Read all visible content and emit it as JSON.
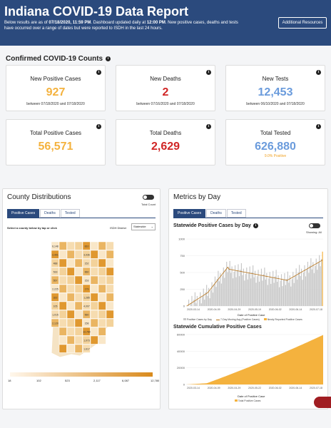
{
  "header": {
    "title": "Indiana COVID-19 Data Report",
    "sub_pre": "Below results are as of ",
    "sub_date": "07/18/2020, 11:59 PM",
    "sub_mid": ". Dashboard updated daily at ",
    "sub_time": "12:00 PM",
    "sub_post": ". New positive cases, deaths and tests have occurred over a range of dates but were reported to ISDH in the last 24 hours.",
    "resources_label": "Additional Resources"
  },
  "confirmed": {
    "title": "Confirmed COVID-19 Counts",
    "cards": [
      {
        "title": "New Positive Cases",
        "value": "927",
        "date": "between 07/18/2020 and 07/18/2020"
      },
      {
        "title": "New Deaths",
        "value": "2",
        "date": "between 07/16/2020 and 07/18/2020"
      },
      {
        "title": "New Tests",
        "value": "12,453",
        "date": "between 06/10/2020 and 07/18/2020"
      },
      {
        "title": "Total Positive Cases",
        "value": "56,571"
      },
      {
        "title": "Total Deaths",
        "value": "2,629"
      },
      {
        "title": "Total Tested",
        "value": "626,880",
        "pos": "9.0% Positive"
      }
    ]
  },
  "county": {
    "title": "County Distributions",
    "toggle_label": "Total Count",
    "tabs": [
      "Positive Cases",
      "Deaths",
      "Tested"
    ],
    "instruction": "Select a county below by tap or click",
    "district_label": "ISDH District",
    "district_value": "Statewide",
    "legend_ticks": [
      "18",
      "102",
      "523",
      "2,117",
      "6,087",
      "12,780"
    ],
    "map_labels": [
      "6,148",
      "810",
      "2,401",
      "3,936",
      "488",
      "152",
      "533",
      "660",
      "557",
      "153",
      "2,225",
      "179",
      "322",
      "1,285",
      "105",
      "4,007",
      "1,015",
      "560",
      "2,120",
      "158",
      "12,780",
      "1,073",
      "1,617",
      "1,107",
      "475"
    ]
  },
  "metrics": {
    "title": "Metrics by Day",
    "tabs": [
      "Positive Cases",
      "Deaths",
      "Tested"
    ],
    "showing_label": "Showing: All",
    "chart1": {
      "title": "Statewide Positive Cases by Day",
      "xlabel": "Date of Positive Case",
      "yticks": [
        "1000",
        "750",
        "500",
        "250",
        "0"
      ],
      "xticks": [
        "2020-03-14",
        "2020-04-09",
        "2020-04-29",
        "2020-05-19",
        "2020-06-02",
        "2020-06-14",
        "2020-07-18"
      ],
      "legend": [
        "Positive Cases by Day",
        "7-Day Moving Avg (Positive Cases)",
        "Newly Reported Positive Cases"
      ]
    },
    "chart2": {
      "title": "Statewide Cumulative Positive Cases",
      "xlabel": "Date of Positive Case",
      "yticks": [
        "60000",
        "40000",
        "20000",
        "0"
      ],
      "xticks": [
        "2020-03-14",
        "2020-04-09",
        "2020-04-29",
        "2020-05-22",
        "2020-06-02",
        "2020-06-14",
        "2020-07-18"
      ],
      "legend": [
        "Total Positive Cases"
      ]
    }
  },
  "colors": {
    "header": "#2b4a7d",
    "orange": "#f4b23e",
    "red": "#d02525",
    "blue": "#6a9bdc"
  }
}
